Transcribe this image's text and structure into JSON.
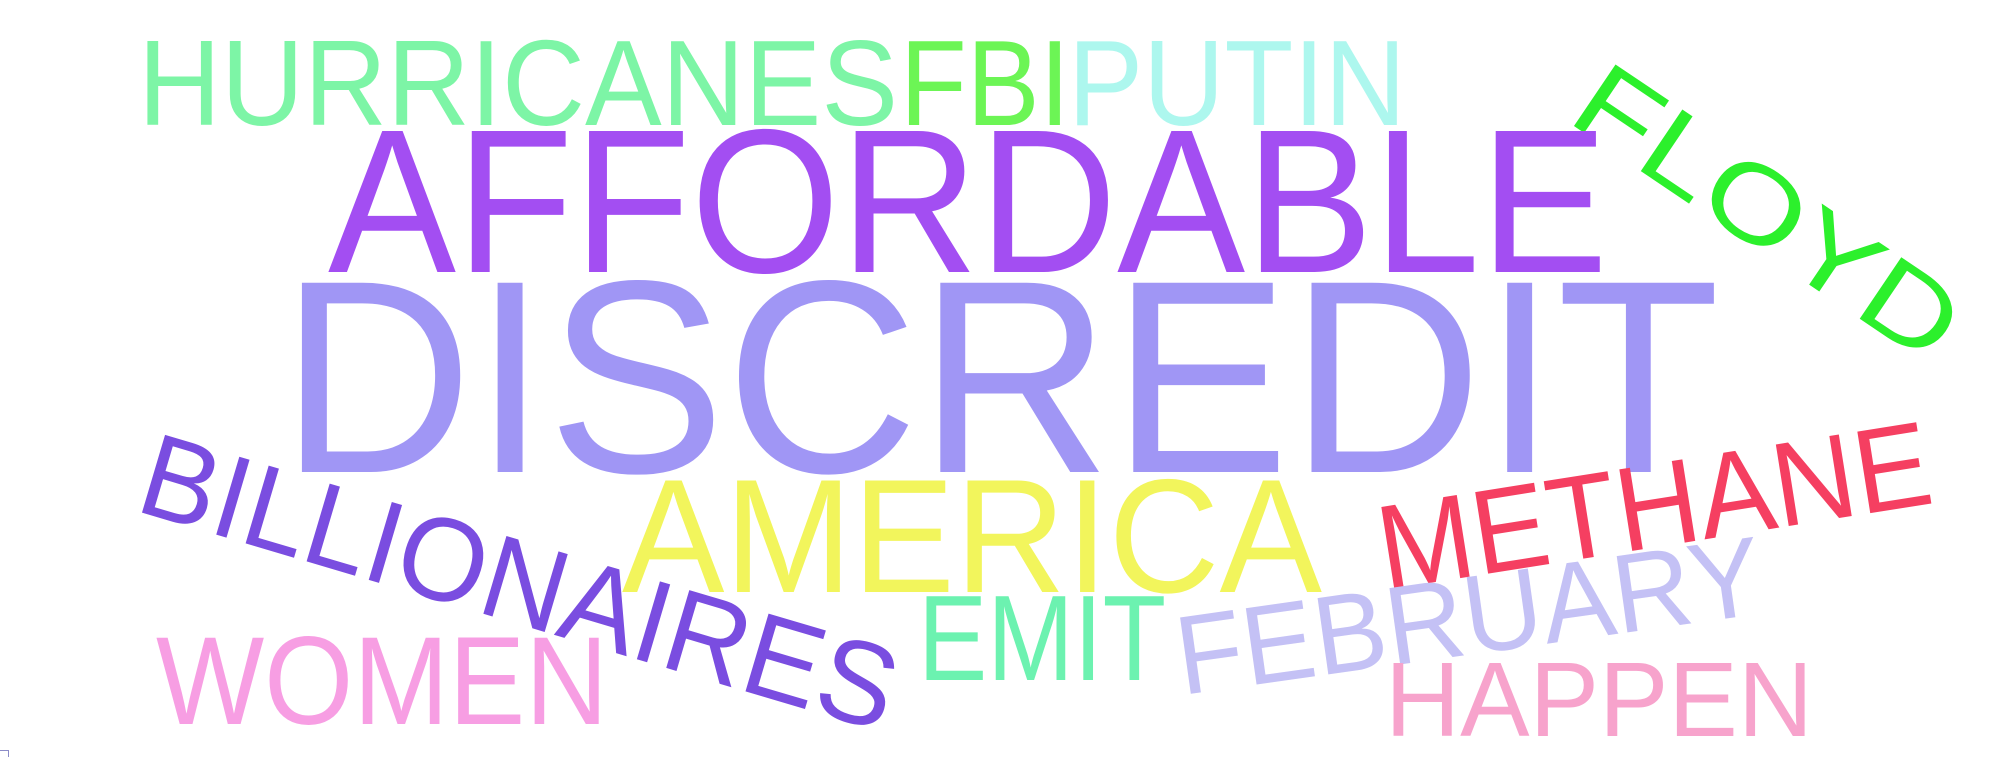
{
  "words": [
    {
      "text": "HURRICANES",
      "color": "#7df5a6"
    },
    {
      "text": "FBI",
      "color": "#6cf555"
    },
    {
      "text": "PUTIN",
      "color": "#adf7ee"
    },
    {
      "text": "FLOYD",
      "color": "#2cf02c"
    },
    {
      "text": "AFFORDABLE",
      "color": "#a34ef2"
    },
    {
      "text": "DISCREDIT",
      "color": "#a096f5"
    },
    {
      "text": "BILLIONAIRES",
      "color": "#7a4de0"
    },
    {
      "text": "AMERICA",
      "color": "#f2f55c"
    },
    {
      "text": "METHANE",
      "color": "#f53f61"
    },
    {
      "text": "WOMEN",
      "color": "#f79ee3"
    },
    {
      "text": "EMIT",
      "color": "#6cf2b0"
    },
    {
      "text": "FEBRUARY",
      "color": "#c4c1f5"
    },
    {
      "text": "HAPPEN",
      "color": "#f7a3cc"
    }
  ]
}
